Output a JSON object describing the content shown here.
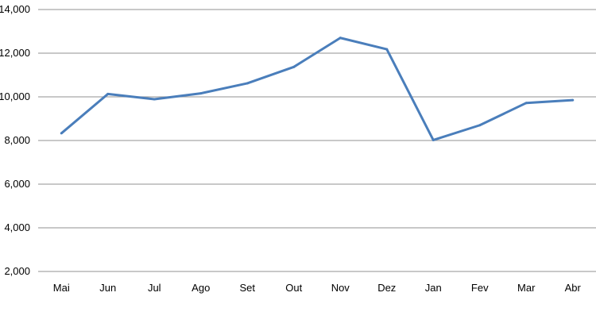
{
  "chart_data": {
    "type": "line",
    "title": "",
    "xlabel": "",
    "ylabel": "",
    "categories": [
      "Mai",
      "Jun",
      "Jul",
      "Ago",
      "Set",
      "Out",
      "Nov",
      "Dez",
      "Jan",
      "Fev",
      "Mar",
      "Abr"
    ],
    "series": [
      {
        "values": [
          8330,
          10130,
          9890,
          10160,
          10620,
          11370,
          12700,
          12180,
          8020,
          8700,
          9720,
          9850
        ],
        "color": "#4a7ebb"
      }
    ],
    "ylim": [
      2000,
      14000
    ],
    "yticks": [
      2000,
      4000,
      6000,
      8000,
      10000,
      12000,
      14000
    ],
    "ytick_labels": [
      "2,000",
      "4,000",
      "6,000",
      "8,000",
      "10,000",
      "12,000",
      "14,000"
    ],
    "grid": "horizontal",
    "gridline_color": "#a6a6a6",
    "legend": "none"
  }
}
